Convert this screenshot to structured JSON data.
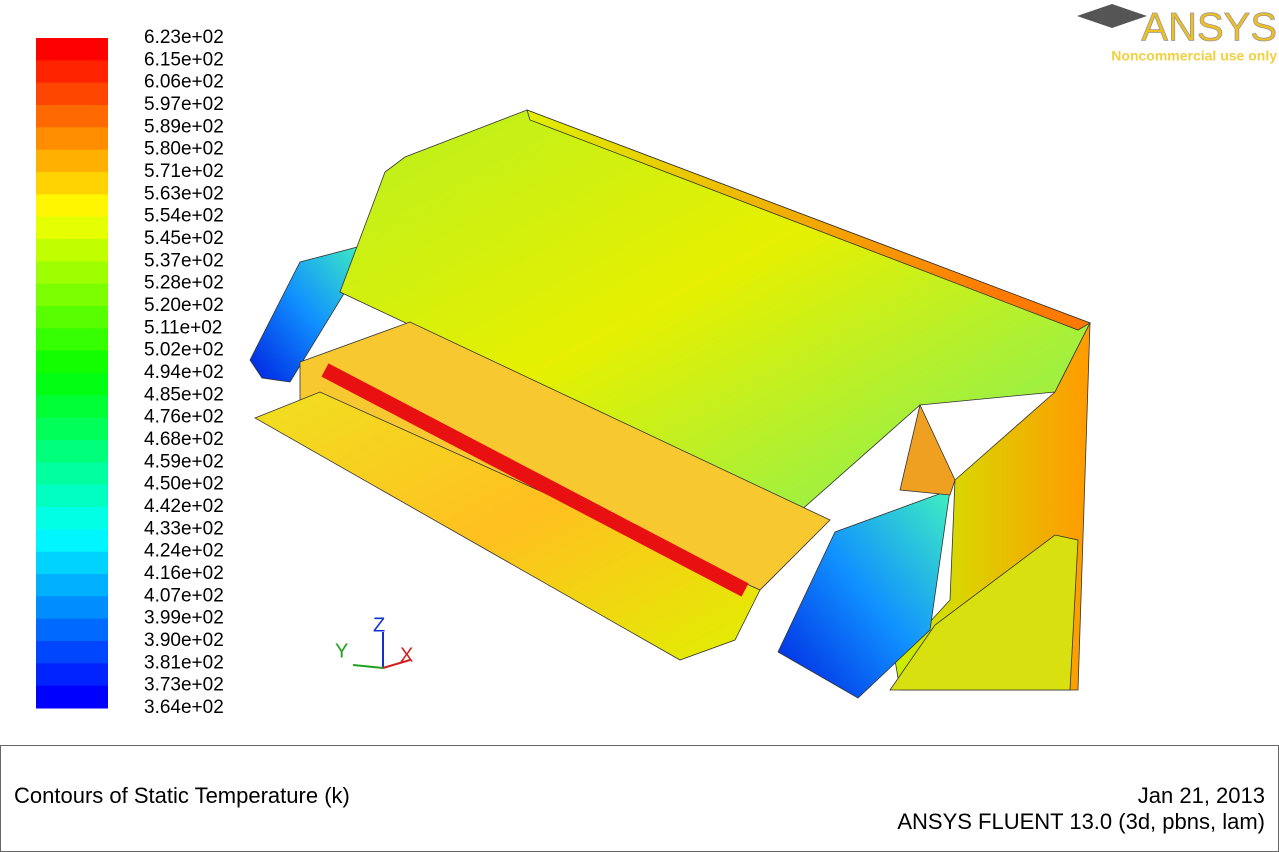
{
  "logo": {
    "brand": "ANSYS",
    "note": "Noncommercial use only"
  },
  "colorbar": {
    "labels": [
      "6.23e+02",
      "6.15e+02",
      "6.06e+02",
      "5.97e+02",
      "5.89e+02",
      "5.80e+02",
      "5.71e+02",
      "5.63e+02",
      "5.54e+02",
      "5.45e+02",
      "5.37e+02",
      "5.28e+02",
      "5.20e+02",
      "5.11e+02",
      "5.02e+02",
      "4.94e+02",
      "4.85e+02",
      "4.76e+02",
      "4.68e+02",
      "4.59e+02",
      "4.50e+02",
      "4.42e+02",
      "4.33e+02",
      "4.24e+02",
      "4.16e+02",
      "4.07e+02",
      "3.99e+02",
      "3.90e+02",
      "3.81e+02",
      "3.73e+02",
      "3.64e+02"
    ]
  },
  "triad": {
    "x": "X",
    "y": "Y",
    "z": "Z"
  },
  "footer": {
    "title": "Contours of Static Temperature (k)",
    "date": "Jan 21, 2013",
    "version": "ANSYS FLUENT 13.0 (3d, pbns, lam)"
  }
}
